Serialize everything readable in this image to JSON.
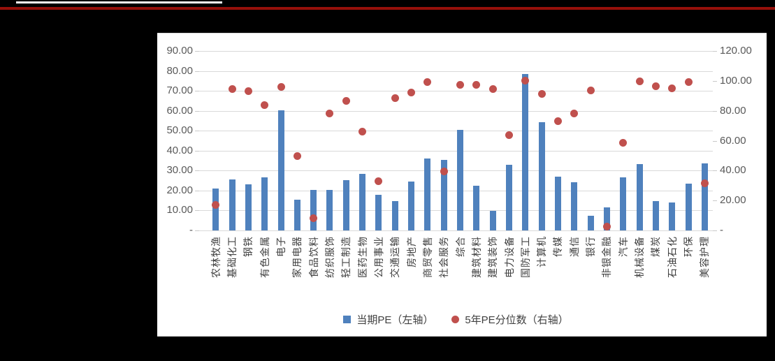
{
  "page": {
    "background": "#000000",
    "top_rule_color": "#ffffff",
    "header_rule_color": "#96100a",
    "panel_background": "#ffffff",
    "gridline_color": "#d9d9d9"
  },
  "legend": {
    "items": [
      {
        "marker": "square-icon",
        "color": "#4f81bd",
        "label": "当期PE（左轴）"
      },
      {
        "marker": "circle-icon",
        "color": "#c0504d",
        "label": "5年PE分位数（右轴）"
      }
    ]
  },
  "chart_data": {
    "type": "combo",
    "title": "",
    "xlabel": "",
    "ylabel": "",
    "grid": true,
    "legend_position": "bottom",
    "ylim_left": [
      0,
      90
    ],
    "ylim_right": [
      0,
      120
    ],
    "left_tick_labels": [
      "90.00",
      "80.00",
      "70.00",
      "60.00",
      "50.00",
      "40.00",
      "30.00",
      "20.00",
      "10.00",
      "-"
    ],
    "right_tick_labels": [
      "120.00",
      "100.00",
      "80.00",
      "60.00",
      "40.00",
      "20.00",
      "-"
    ],
    "categories": [
      "农林牧渔",
      "基础化工",
      "钢铁",
      "有色金属",
      "电子",
      "家用电器",
      "食品饮料",
      "纺织服饰",
      "轻工制造",
      "医药生物",
      "公用事业",
      "交通运输",
      "房地产",
      "商贸零售",
      "社会服务",
      "综合",
      "建筑材料",
      "建筑装饰",
      "电力设备",
      "国防军工",
      "计算机",
      "传媒",
      "通信",
      "银行",
      "非银金融",
      "汽车",
      "机械设备",
      "煤炭",
      "石油石化",
      "环保",
      "美容护理"
    ],
    "series": [
      {
        "name": "当期PE（左轴）",
        "type": "bar",
        "axis": "left",
        "color": "#4f81bd",
        "values": [
          21.2,
          25.6,
          23.1,
          26.8,
          60.2,
          15.3,
          20.4,
          20.4,
          25.2,
          28.5,
          17.8,
          14.9,
          24.5,
          36.2,
          35.5,
          50.5,
          22.4,
          9.9,
          33.0,
          78.5,
          54.3,
          27.0,
          24.1,
          7.4,
          11.6,
          26.6,
          33.2,
          14.9,
          13.9,
          23.5,
          33.6
        ]
      },
      {
        "name": "5年PE分位数（右轴）",
        "type": "scatter",
        "axis": "right",
        "color": "#c0504d",
        "values": [
          17.0,
          94.6,
          93.3,
          83.7,
          96.1,
          49.8,
          8.0,
          78.2,
          86.8,
          66.3,
          33.0,
          88.6,
          92.2,
          99.2,
          39.3,
          97.2,
          97.2,
          94.6,
          63.8,
          100.3,
          91.1,
          73.3,
          78.2,
          93.8,
          2.5,
          58.8,
          99.7,
          96.5,
          95.0,
          99.2,
          31.6
        ]
      }
    ]
  }
}
